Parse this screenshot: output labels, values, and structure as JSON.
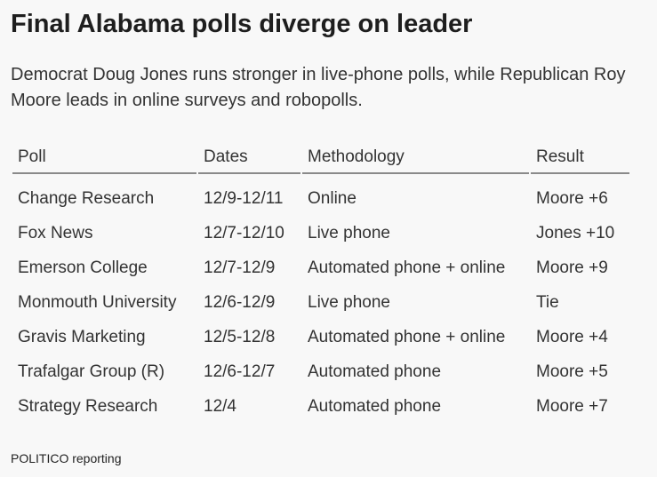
{
  "title": "Final Alabama polls diverge on leader",
  "subtitle": "Democrat Doug Jones runs stronger in live-phone polls, while Republican Roy Moore leads in online surveys and robopolls.",
  "table": {
    "headers": {
      "poll": "Poll",
      "dates": "Dates",
      "methodology": "Methodology",
      "result": "Result"
    },
    "rows": [
      {
        "poll": "Change Research",
        "dates": "12/9-12/11",
        "methodology": "Online",
        "result": "Moore +6"
      },
      {
        "poll": "Fox News",
        "dates": "12/7-12/10",
        "methodology": "Live phone",
        "result": "Jones +10"
      },
      {
        "poll": "Emerson College",
        "dates": "12/7-12/9",
        "methodology": "Automated phone + online",
        "result": "Moore +9"
      },
      {
        "poll": "Monmouth University",
        "dates": "12/6-12/9",
        "methodology": "Live phone",
        "result": "Tie"
      },
      {
        "poll": "Gravis Marketing",
        "dates": "12/5-12/8",
        "methodology": "Automated phone + online",
        "result": "Moore +4"
      },
      {
        "poll": "Trafalgar Group (R)",
        "dates": "12/6-12/7",
        "methodology": "Automated phone",
        "result": "Moore +5"
      },
      {
        "poll": "Strategy Research",
        "dates": "12/4",
        "methodology": "Automated phone",
        "result": "Moore +7"
      }
    ]
  },
  "footer": "POLITICO reporting"
}
